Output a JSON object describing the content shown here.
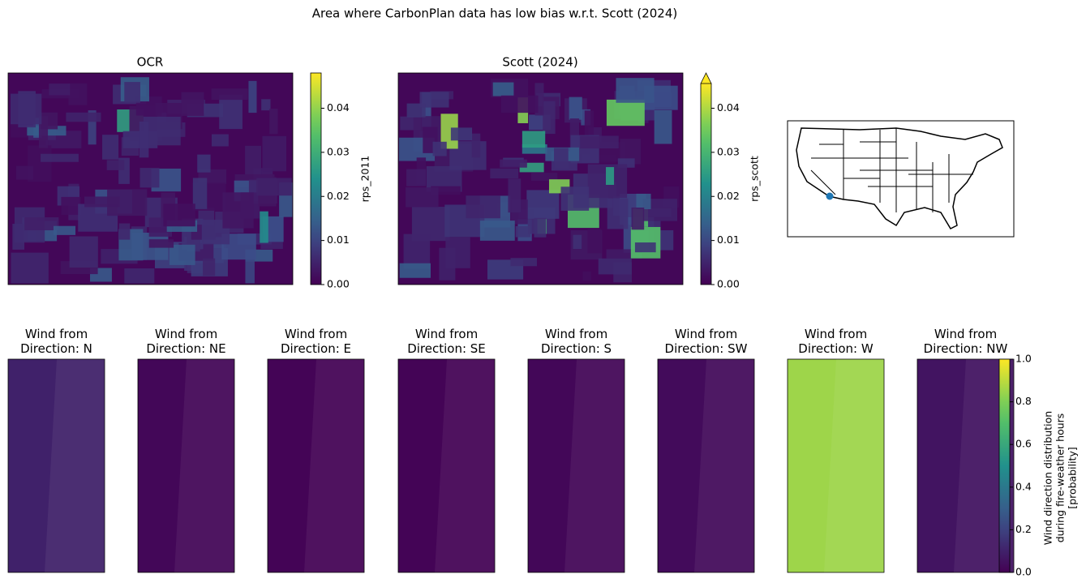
{
  "title": "Area where CarbonPlan data has low bias w.r.t. Scott (2024)",
  "chart_data": [
    {
      "type": "heatmap",
      "title": "OCR",
      "colorbar_label": "rps_2011",
      "colormap": "viridis",
      "ylim": [
        0,
        0.048
      ],
      "yticks": [
        {
          "value": 0,
          "label": "0.00"
        },
        0.01,
        0.02,
        0.03,
        0.04
      ]
    },
    {
      "type": "heatmap",
      "title": "Scott (2024)",
      "colorbar_label": "rps_scott",
      "colormap": "viridis",
      "extend": "max",
      "ylim": [
        0,
        0.048
      ],
      "yticks": [
        {
          "value": 0,
          "label": "0.00"
        },
        0.01,
        0.02,
        0.03,
        0.04
      ]
    },
    {
      "type": "map",
      "marker_color": "#1f77b4"
    },
    {
      "type": "panels",
      "colormap": "viridis",
      "categories": [
        "Wind from\nDirection: N",
        "Wind from\nDirection: NE",
        "Wind from\nDirection: E",
        "Wind from\nDirection: SE",
        "Wind from\nDirection: S",
        "Wind from\nDirection: SW",
        "Wind from\nDirection: W",
        "Wind from\nDirection: NW"
      ],
      "values": [
        0.1,
        0.02,
        0.01,
        0.01,
        0.02,
        0.03,
        0.85,
        0.06
      ],
      "colorbar_label": "Wind direction distribution\nduring fire-weather hours\n[probability]",
      "ylim": [
        0,
        1
      ],
      "yticks": [
        {
          "value": 0,
          "label": "0.0"
        },
        0.2,
        0.4,
        0.6,
        0.8,
        {
          "value": 1,
          "label": "1.0"
        }
      ]
    }
  ]
}
